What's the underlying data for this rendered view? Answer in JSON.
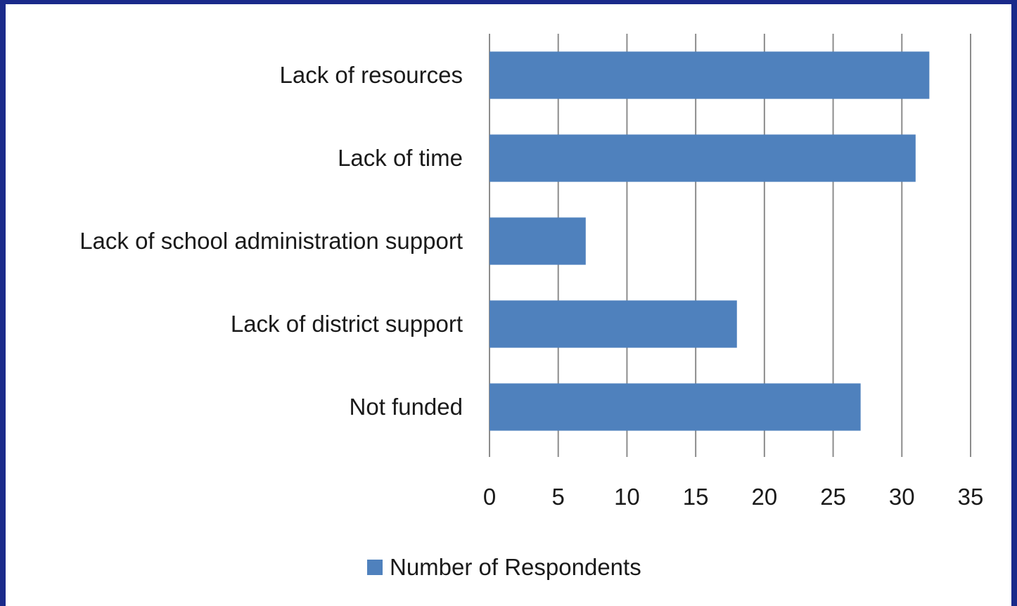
{
  "chart_data": {
    "type": "bar",
    "orientation": "horizontal",
    "categories": [
      "Lack of resources",
      "Lack of time",
      "Lack of school administration support",
      "Lack of district support",
      "Not funded"
    ],
    "series": [
      {
        "name": "Number of Respondents",
        "values": [
          32,
          31,
          7,
          18,
          27
        ],
        "color": "#4f81bd"
      }
    ],
    "xlim": [
      0,
      35
    ],
    "xticks": [
      0,
      5,
      10,
      15,
      20,
      25,
      30,
      35
    ],
    "grid": true,
    "legend_position": "bottom"
  }
}
